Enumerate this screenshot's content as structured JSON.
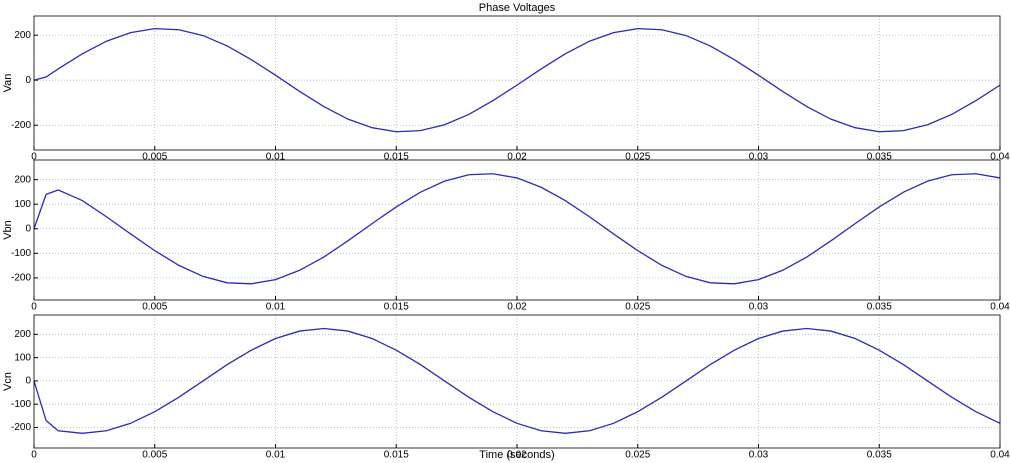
{
  "chart_data": [
    {
      "type": "line",
      "title": "Phase Voltages",
      "ylabel": "Van",
      "color": "#2b2bb8",
      "grid": true,
      "x": [
        0,
        0.0005,
        0.001,
        0.002,
        0.003,
        0.004,
        0.005,
        0.006,
        0.007,
        0.008,
        0.009,
        0.01,
        0.011,
        0.012,
        0.013,
        0.014,
        0.015,
        0.016,
        0.017,
        0.018,
        0.019,
        0.02,
        0.021,
        0.022,
        0.023,
        0.024,
        0.025,
        0.026,
        0.027,
        0.028,
        0.029,
        0.03,
        0.031,
        0.032,
        0.033,
        0.034,
        0.035,
        0.036,
        0.037,
        0.038,
        0.039,
        0.04
      ],
      "values": [
        0,
        14,
        50,
        117,
        173,
        211,
        229,
        224,
        198,
        152,
        91,
        22,
        -50,
        -117,
        -173,
        -211,
        -229,
        -224,
        -198,
        -152,
        -91,
        -22,
        50,
        117,
        173,
        211,
        229,
        224,
        198,
        152,
        91,
        22,
        -50,
        -117,
        -173,
        -211,
        -229,
        -224,
        -198,
        -152,
        -91,
        -22
      ],
      "xlim": [
        0,
        0.04
      ],
      "xticks": [
        0,
        0.005,
        0.01,
        0.015,
        0.02,
        0.025,
        0.03,
        0.035,
        0.04
      ],
      "ylim": [
        -310,
        285
      ],
      "yticks": [
        -200,
        0,
        200
      ]
    },
    {
      "type": "line",
      "ylabel": "Vbn",
      "color": "#2b2bb8",
      "grid": true,
      "x": [
        0,
        0.0005,
        0.001,
        0.002,
        0.003,
        0.004,
        0.005,
        0.006,
        0.007,
        0.008,
        0.009,
        0.01,
        0.011,
        0.012,
        0.013,
        0.014,
        0.015,
        0.016,
        0.017,
        0.018,
        0.019,
        0.02,
        0.021,
        0.022,
        0.023,
        0.024,
        0.025,
        0.026,
        0.027,
        0.028,
        0.029,
        0.03,
        0.031,
        0.032,
        0.033,
        0.034,
        0.035,
        0.036,
        0.037,
        0.038,
        0.039,
        0.04
      ],
      "values": [
        0,
        140,
        158,
        115,
        49,
        -21,
        -89,
        -149,
        -194,
        -220,
        -224,
        -207,
        -169,
        -115,
        -49,
        21,
        89,
        149,
        194,
        220,
        224,
        207,
        169,
        115,
        49,
        -21,
        -89,
        -149,
        -194,
        -220,
        -224,
        -207,
        -169,
        -115,
        -49,
        21,
        89,
        149,
        194,
        220,
        224,
        207
      ],
      "xlim": [
        0,
        0.04
      ],
      "xticks": [
        0,
        0.005,
        0.01,
        0.015,
        0.02,
        0.025,
        0.03,
        0.035,
        0.04
      ],
      "ylim": [
        -290,
        280
      ],
      "yticks": [
        -200,
        -100,
        0,
        100,
        200
      ]
    },
    {
      "type": "line",
      "ylabel": "Vcn",
      "xlabel": "Time (seconds)",
      "color": "#2b2bb8",
      "grid": true,
      "x": [
        0,
        0.0005,
        0.001,
        0.002,
        0.003,
        0.004,
        0.005,
        0.006,
        0.007,
        0.008,
        0.009,
        0.01,
        0.011,
        0.012,
        0.013,
        0.014,
        0.015,
        0.016,
        0.017,
        0.018,
        0.019,
        0.02,
        0.021,
        0.022,
        0.023,
        0.024,
        0.025,
        0.026,
        0.027,
        0.028,
        0.029,
        0.03,
        0.031,
        0.032,
        0.033,
        0.034,
        0.035,
        0.036,
        0.037,
        0.038,
        0.039,
        0.04
      ],
      "values": [
        0,
        -170,
        -214,
        -225,
        -214,
        -182,
        -132,
        -70,
        0,
        70,
        132,
        182,
        214,
        225,
        214,
        182,
        132,
        70,
        0,
        -70,
        -132,
        -182,
        -214,
        -225,
        -214,
        -182,
        -132,
        -70,
        0,
        70,
        132,
        182,
        214,
        225,
        214,
        182,
        132,
        70,
        0,
        -70,
        -132,
        -182
      ],
      "xlim": [
        0,
        0.04
      ],
      "xticks": [
        0,
        0.005,
        0.01,
        0.015,
        0.02,
        0.025,
        0.03,
        0.035,
        0.04
      ],
      "ylim": [
        -288,
        283
      ],
      "yticks": [
        -200,
        -100,
        0,
        100,
        200
      ]
    }
  ]
}
